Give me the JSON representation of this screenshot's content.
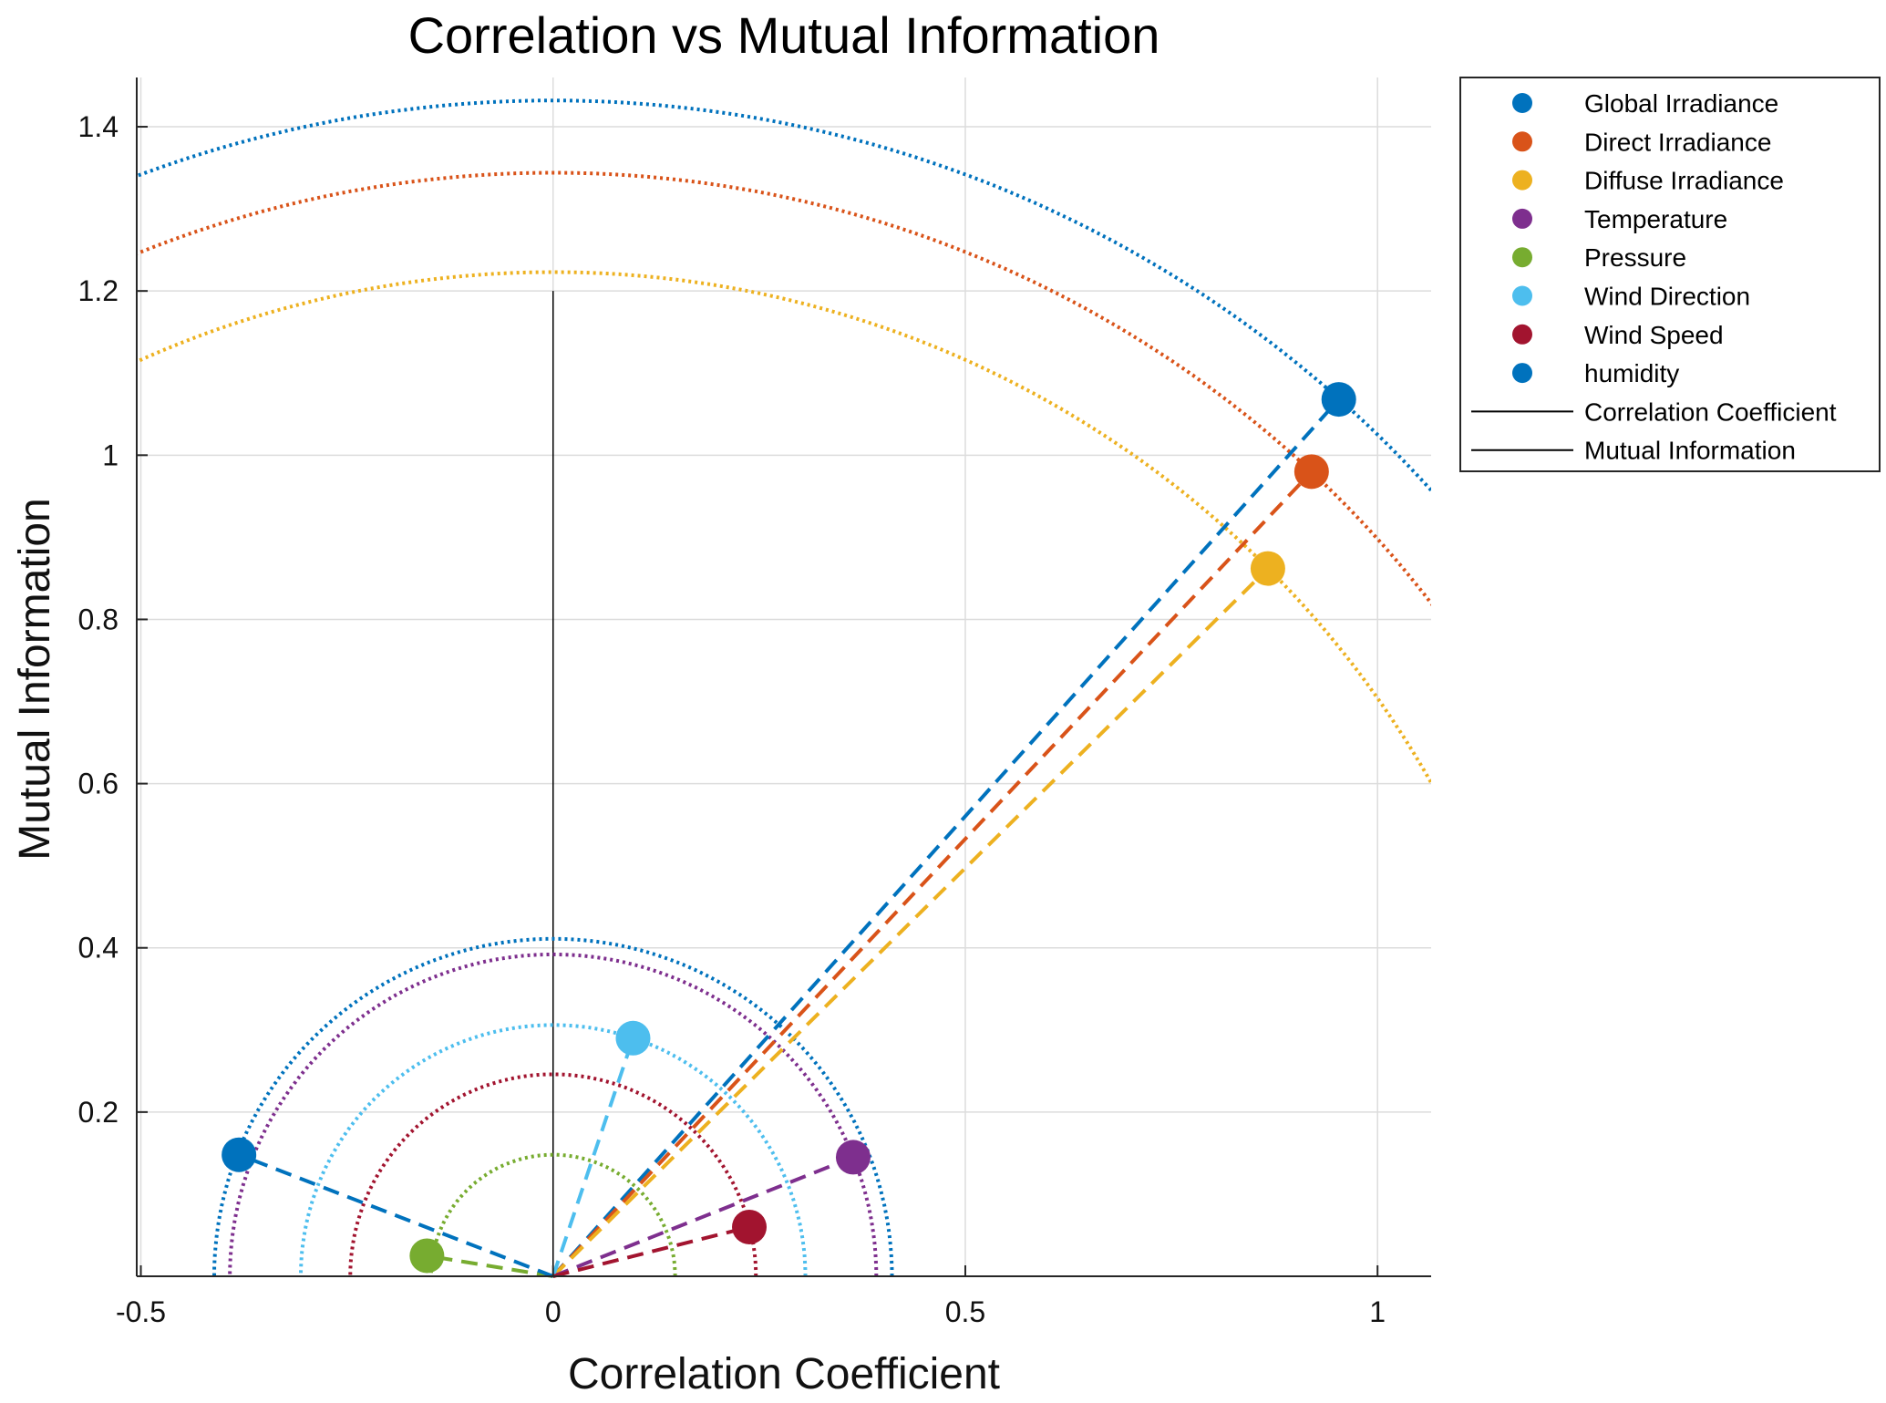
{
  "chart_data": {
    "type": "scatter",
    "title": "Correlation vs Mutual Information",
    "xlabel": "Correlation Coefficient",
    "ylabel": "Mutual Information",
    "xlim": [
      -0.505,
      1.065
    ],
    "ylim": [
      0.0,
      1.46
    ],
    "x_ticks": [
      -0.5,
      0,
      0.5,
      1
    ],
    "x_tick_labels": [
      "-0.5",
      "0",
      "0.5",
      "1"
    ],
    "y_ticks": [
      0.2,
      0.4,
      0.6,
      0.8,
      1.0,
      1.2,
      1.4
    ],
    "y_tick_labels": [
      "0.2",
      "0.4",
      "0.6",
      "0.8",
      "1",
      "1.2",
      "1.4"
    ],
    "grid": true,
    "legend_position": "outside-top-right",
    "series": [
      {
        "name": "Global Irradiance",
        "color": "#0072BD",
        "x": 0.953,
        "y": 1.068,
        "radius": 1.432
      },
      {
        "name": "Direct Irradiance",
        "color": "#D95319",
        "x": 0.92,
        "y": 0.98,
        "radius": 1.344
      },
      {
        "name": "Diffuse Irradiance",
        "color": "#EDB120",
        "x": 0.867,
        "y": 0.862,
        "radius": 1.223
      },
      {
        "name": "Temperature",
        "color": "#7E2F8E",
        "x": 0.364,
        "y": 0.145,
        "radius": 0.392
      },
      {
        "name": "Pressure",
        "color": "#77AC30",
        "x": -0.153,
        "y": 0.025,
        "radius": 0.148
      },
      {
        "name": "Wind Direction",
        "color": "#4DBEEE",
        "x": 0.097,
        "y": 0.29,
        "radius": 0.306
      },
      {
        "name": "Wind Speed",
        "color": "#A2142F",
        "x": 0.238,
        "y": 0.06,
        "radius": 0.246
      },
      {
        "name": "humidity",
        "color": "#0072BD",
        "x": -0.381,
        "y": 0.148,
        "radius": 0.411
      }
    ],
    "reference_lines": [
      {
        "name": "Correlation Coefficient",
        "color": "#000000"
      },
      {
        "name": "Mutual Information",
        "color": "#000000",
        "x": 0,
        "y_range": [
          0,
          1.2
        ]
      }
    ]
  }
}
